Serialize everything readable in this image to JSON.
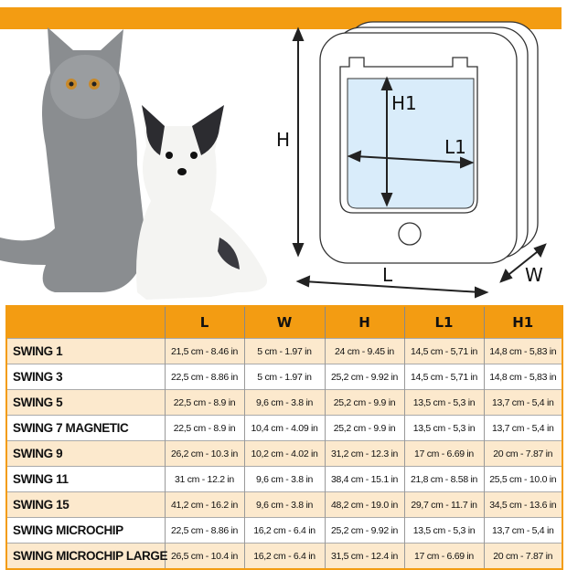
{
  "colors": {
    "accent": "#f39c12",
    "row_alt": "#fce9cd"
  },
  "diagram": {
    "labels": {
      "height": "H",
      "length": "L",
      "width": "W",
      "inner_length": "L1",
      "inner_height": "H1"
    }
  },
  "table": {
    "headers": [
      "",
      "L",
      "W",
      "H",
      "L1",
      "H1"
    ],
    "rows": [
      {
        "name": "SWING 1",
        "cells": [
          "21,5 cm - 8.46 in",
          "5 cm - 1.97 in",
          "24 cm - 9.45 in",
          "14,5 cm - 5,71 in",
          "14,8 cm - 5,83 in"
        ]
      },
      {
        "name": "SWING 3",
        "cells": [
          "22,5 cm - 8.86 in",
          "5 cm - 1.97 in",
          "25,2 cm - 9.92 in",
          "14,5 cm - 5,71 in",
          "14,8 cm - 5,83 in"
        ]
      },
      {
        "name": "SWING 5",
        "cells": [
          "22,5 cm - 8.9 in",
          "9,6 cm - 3.8 in",
          "25,2 cm - 9.9 in",
          "13,5 cm - 5,3 in",
          "13,7 cm - 5,4 in"
        ]
      },
      {
        "name": "SWING 7 MAGNETIC",
        "cells": [
          "22,5 cm - 8.9 in",
          "10,4 cm - 4.09 in",
          "25,2 cm - 9.9 in",
          "13,5 cm - 5,3 in",
          "13,7 cm - 5,4 in"
        ]
      },
      {
        "name": "SWING 9",
        "cells": [
          "26,2 cm - 10.3 in",
          "10,2 cm - 4.02 in",
          "31,2 cm - 12.3 in",
          "17 cm - 6.69 in",
          "20 cm - 7.87 in"
        ]
      },
      {
        "name": "SWING 11",
        "cells": [
          "31 cm - 12.2 in",
          "9,6 cm - 3.8 in",
          "38,4 cm - 15.1 in",
          "21,8 cm - 8.58 in",
          "25,5 cm - 10.0 in"
        ]
      },
      {
        "name": "SWING 15",
        "cells": [
          "41,2 cm - 16.2 in",
          "9,6 cm - 3.8 in",
          "48,2 cm - 19.0 in",
          "29,7 cm - 11.7 in",
          "34,5 cm - 13.6 in"
        ]
      },
      {
        "name": "SWING MICROCHIP",
        "cells": [
          "22,5 cm - 8.86 in",
          "16,2 cm - 6.4 in",
          "25,2 cm - 9.92 in",
          "13,5 cm - 5,3 in",
          "13,7 cm - 5,4 in"
        ]
      },
      {
        "name": "SWING MICROCHIP LARGE",
        "cells": [
          "26,5 cm - 10.4 in",
          "16,2 cm - 6.4 in",
          "31,5 cm - 12.4 in",
          "17 cm - 6.69 in",
          "20 cm - 7.87 in"
        ]
      }
    ]
  }
}
